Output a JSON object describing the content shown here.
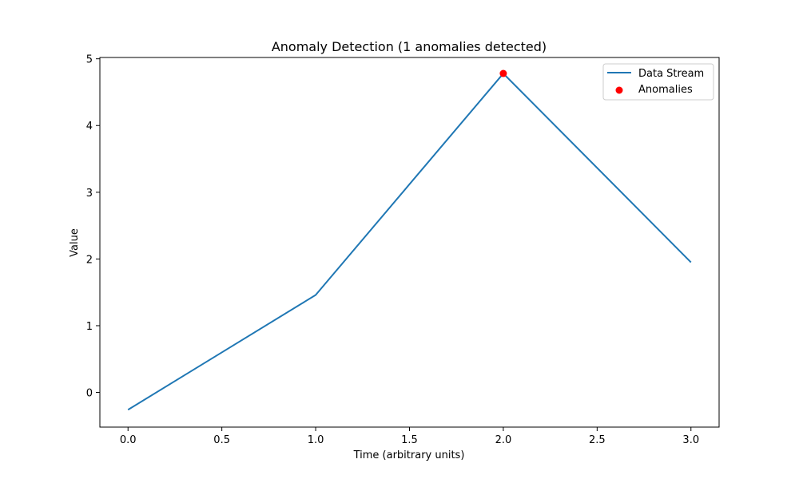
{
  "chart_data": {
    "type": "line",
    "title": "Anomaly Detection (1 anomalies detected)",
    "xlabel": "Time (arbitrary units)",
    "ylabel": "Value",
    "xlim": [
      -0.15,
      3.15
    ],
    "ylim": [
      -0.52,
      5.02
    ],
    "x_ticks": [
      0.0,
      0.5,
      1.0,
      1.5,
      2.0,
      2.5,
      3.0
    ],
    "x_tick_labels": [
      "0.0",
      "0.5",
      "1.0",
      "1.5",
      "2.0",
      "2.5",
      "3.0"
    ],
    "y_ticks": [
      0,
      1,
      2,
      3,
      4,
      5
    ],
    "y_tick_labels": [
      "0",
      "1",
      "2",
      "3",
      "4",
      "5"
    ],
    "grid": false,
    "legend_position": "top-right",
    "series": [
      {
        "name": "Data Stream",
        "kind": "line",
        "color": "#1f77b4",
        "x": [
          0,
          1,
          2,
          3
        ],
        "y": [
          -0.26,
          1.46,
          4.78,
          1.95
        ]
      },
      {
        "name": "Anomalies",
        "kind": "scatter",
        "color": "#ff0000",
        "x": [
          2
        ],
        "y": [
          4.78
        ]
      }
    ]
  }
}
